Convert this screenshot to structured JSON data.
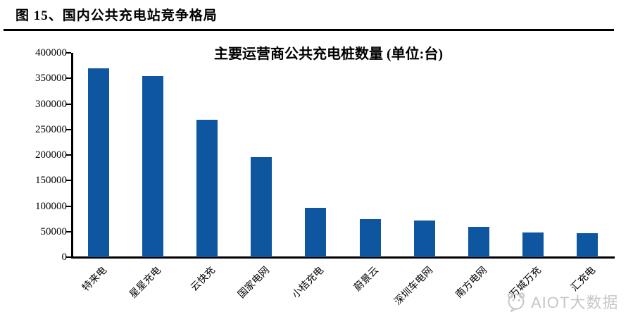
{
  "header": {
    "title": "图 15、国内公共充电站竞争格局"
  },
  "chart_data": {
    "type": "bar",
    "title": "主要运营商公共充电桩数量 (单位:台)",
    "categories": [
      "特来电",
      "星星充电",
      "云快充",
      "国家电网",
      "小桔充电",
      "蔚景云",
      "深圳车电网",
      "南方电网",
      "万城万充",
      "汇充电"
    ],
    "values": [
      370000,
      354000,
      269000,
      196000,
      97000,
      74000,
      72000,
      60000,
      48000,
      47000
    ],
    "xlabel": "",
    "ylabel": "",
    "ylim": [
      0,
      400000
    ],
    "yticks": [
      400000,
      350000,
      300000,
      250000,
      200000,
      150000,
      100000,
      50000,
      0
    ],
    "grid": false,
    "legend_position": "none",
    "bar_color": "#0E56A0",
    "axis_color": "#000000"
  },
  "watermark": {
    "text": "AIOT大数据",
    "logo": "panda-logo-icon",
    "color": "#c6c6c6"
  }
}
